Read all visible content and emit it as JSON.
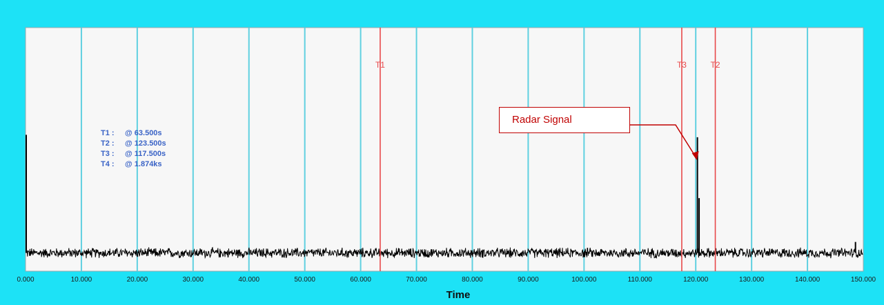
{
  "chart_data": {
    "type": "line",
    "xlabel": "Time",
    "xlim": [
      0,
      150
    ],
    "ylim": [
      0,
      1
    ],
    "grid": true,
    "x_ticks": [
      "0.000",
      "10.000",
      "20.000",
      "30.000",
      "40.000",
      "50.000",
      "60.000",
      "70.000",
      "80.000",
      "90.000",
      "100.000",
      "110.000",
      "120.000",
      "130.000",
      "140.000",
      "150.000"
    ],
    "noise_level": 0.075,
    "noise_amplitude": 0.03,
    "spikes": [
      {
        "x": 0.0,
        "y": 0.56
      },
      {
        "x": 120.3,
        "y": 0.55
      },
      {
        "x": 120.6,
        "y": 0.3
      },
      {
        "x": 148.6,
        "y": 0.12
      }
    ],
    "cursors": [
      {
        "name": "T1",
        "x": 63.5
      },
      {
        "name": "T3",
        "x": 117.5
      },
      {
        "name": "T2",
        "x": 123.5
      }
    ],
    "readout": [
      {
        "label": "T1 :",
        "value": "@ 63.500s"
      },
      {
        "label": "T2 :",
        "value": "@ 123.500s"
      },
      {
        "label": "T3 :",
        "value": "@ 117.500s"
      },
      {
        "label": "T4 :",
        "value": "@ 1.874ks"
      }
    ],
    "annotation": "Radar Signal",
    "colors": {
      "frame": "#1de2f6",
      "plot_bg": "#f7f7f7",
      "grid": "#5fd0e0",
      "cursor": "#e8484a",
      "trace": "#000000",
      "readout": "#3a63c6",
      "annotation": "#c00000"
    }
  }
}
